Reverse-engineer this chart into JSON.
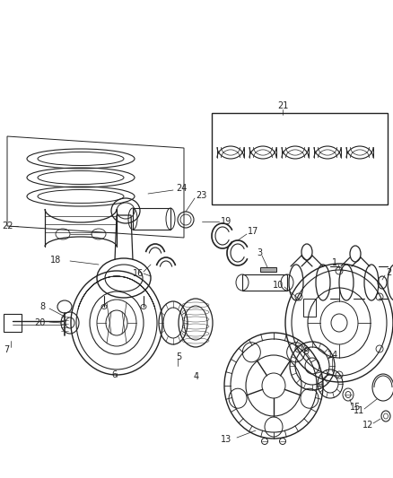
{
  "background_color": "#ffffff",
  "line_color": "#222222",
  "fig_width": 4.38,
  "fig_height": 5.33,
  "dpi": 100,
  "label_fs": 7.0
}
